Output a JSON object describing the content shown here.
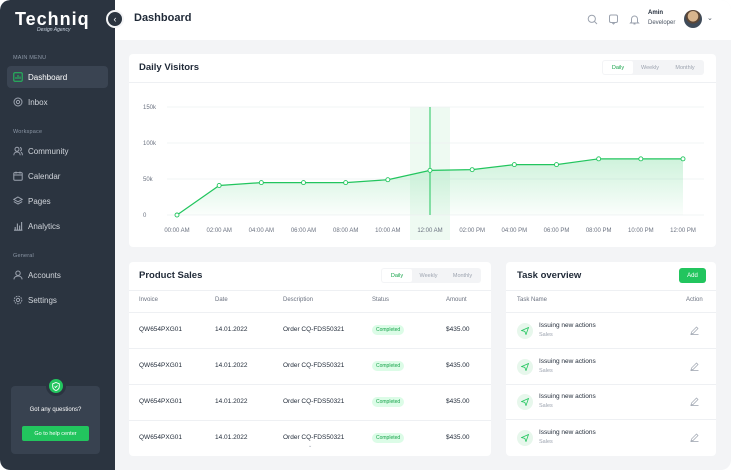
{
  "brand": {
    "name": "Techniq",
    "tagline": "Design Agency"
  },
  "sidebar": {
    "sections": [
      {
        "title": "MAIN MENU",
        "items": [
          {
            "label": "Dashboard",
            "icon": "chart-icon",
            "active": true
          },
          {
            "label": "Inbox",
            "icon": "inbox-icon",
            "active": false
          }
        ]
      },
      {
        "title": "Workspace",
        "items": [
          {
            "label": "Community",
            "icon": "users-icon",
            "active": false
          },
          {
            "label": "Calendar",
            "icon": "calendar-icon",
            "active": false
          },
          {
            "label": "Pages",
            "icon": "layers-icon",
            "active": false
          },
          {
            "label": "Analytics",
            "icon": "bar-chart-icon",
            "active": false
          }
        ]
      },
      {
        "title": "General",
        "items": [
          {
            "label": "Accounts",
            "icon": "user-icon",
            "active": false
          },
          {
            "label": "Settings",
            "icon": "gear-icon",
            "active": false
          }
        ]
      }
    ],
    "help": {
      "text": "Got any questions?",
      "button": "Go to help center"
    }
  },
  "header": {
    "title": "Dashboard",
    "user_name": "Amin",
    "user_role": "Developer"
  },
  "visitors": {
    "title": "Daily Visitors",
    "tabs": [
      "Daily",
      "Weekly",
      "Monthly"
    ],
    "active_tab": "Daily"
  },
  "chart_data": {
    "type": "area",
    "title": "Daily Visitors",
    "y_ticks": [
      "150k",
      "100k",
      "50k",
      "0"
    ],
    "ylim": [
      0,
      150000
    ],
    "x_labels": [
      "00:00 AM",
      "02:00 AM",
      "04:00 AM",
      "06:00 AM",
      "08:00 AM",
      "10:00 AM",
      "12:00 AM",
      "02:00 PM",
      "04:00 PM",
      "06:00 PM",
      "08:00 PM",
      "10:00 PM",
      "12:00 PM"
    ],
    "highlight_label": "12:00 AM",
    "values": [
      0,
      41000,
      45000,
      45000,
      45000,
      49000,
      62000,
      63000,
      70000,
      70000,
      78000,
      78000,
      78000
    ],
    "color": "#22c55e",
    "grid": true
  },
  "sales": {
    "title": "Product Sales",
    "tabs": [
      "Daily",
      "Weekly",
      "Monthly"
    ],
    "active_tab": "Daily",
    "columns": [
      "Invoice",
      "Date",
      "Description",
      "Status",
      "Amount"
    ],
    "rows": [
      {
        "invoice": "QW654PXG01",
        "date": "14.01.2022",
        "description": "Order CQ-FDS50321",
        "status": "Completed",
        "amount": "$435.00"
      },
      {
        "invoice": "QW654PXG01",
        "date": "14.01.2022",
        "description": "Order CQ-FDS50321",
        "status": "Completed",
        "amount": "$435.00"
      },
      {
        "invoice": "QW654PXG01",
        "date": "14.01.2022",
        "description": "Order CQ-FDS50321",
        "status": "Completed",
        "amount": "$435.00"
      },
      {
        "invoice": "QW654PXG01",
        "date": "14.01.2022",
        "description": "Order CQ-FDS50321",
        "status": "Completed",
        "amount": "$435.00"
      }
    ]
  },
  "tasks": {
    "title": "Task overview",
    "add_label": "Add",
    "columns": [
      "Task Name",
      "Action"
    ],
    "items": [
      {
        "title": "Issuing new actions",
        "sub": "Sales"
      },
      {
        "title": "Issuing new actions",
        "sub": "Sales"
      },
      {
        "title": "Issuing new actions",
        "sub": "Sales"
      },
      {
        "title": "Issuing new actions",
        "sub": "Sales"
      }
    ]
  },
  "colors": {
    "accent": "#22c55e",
    "sidebar": "#2b3440",
    "background": "#f3f4f6"
  }
}
